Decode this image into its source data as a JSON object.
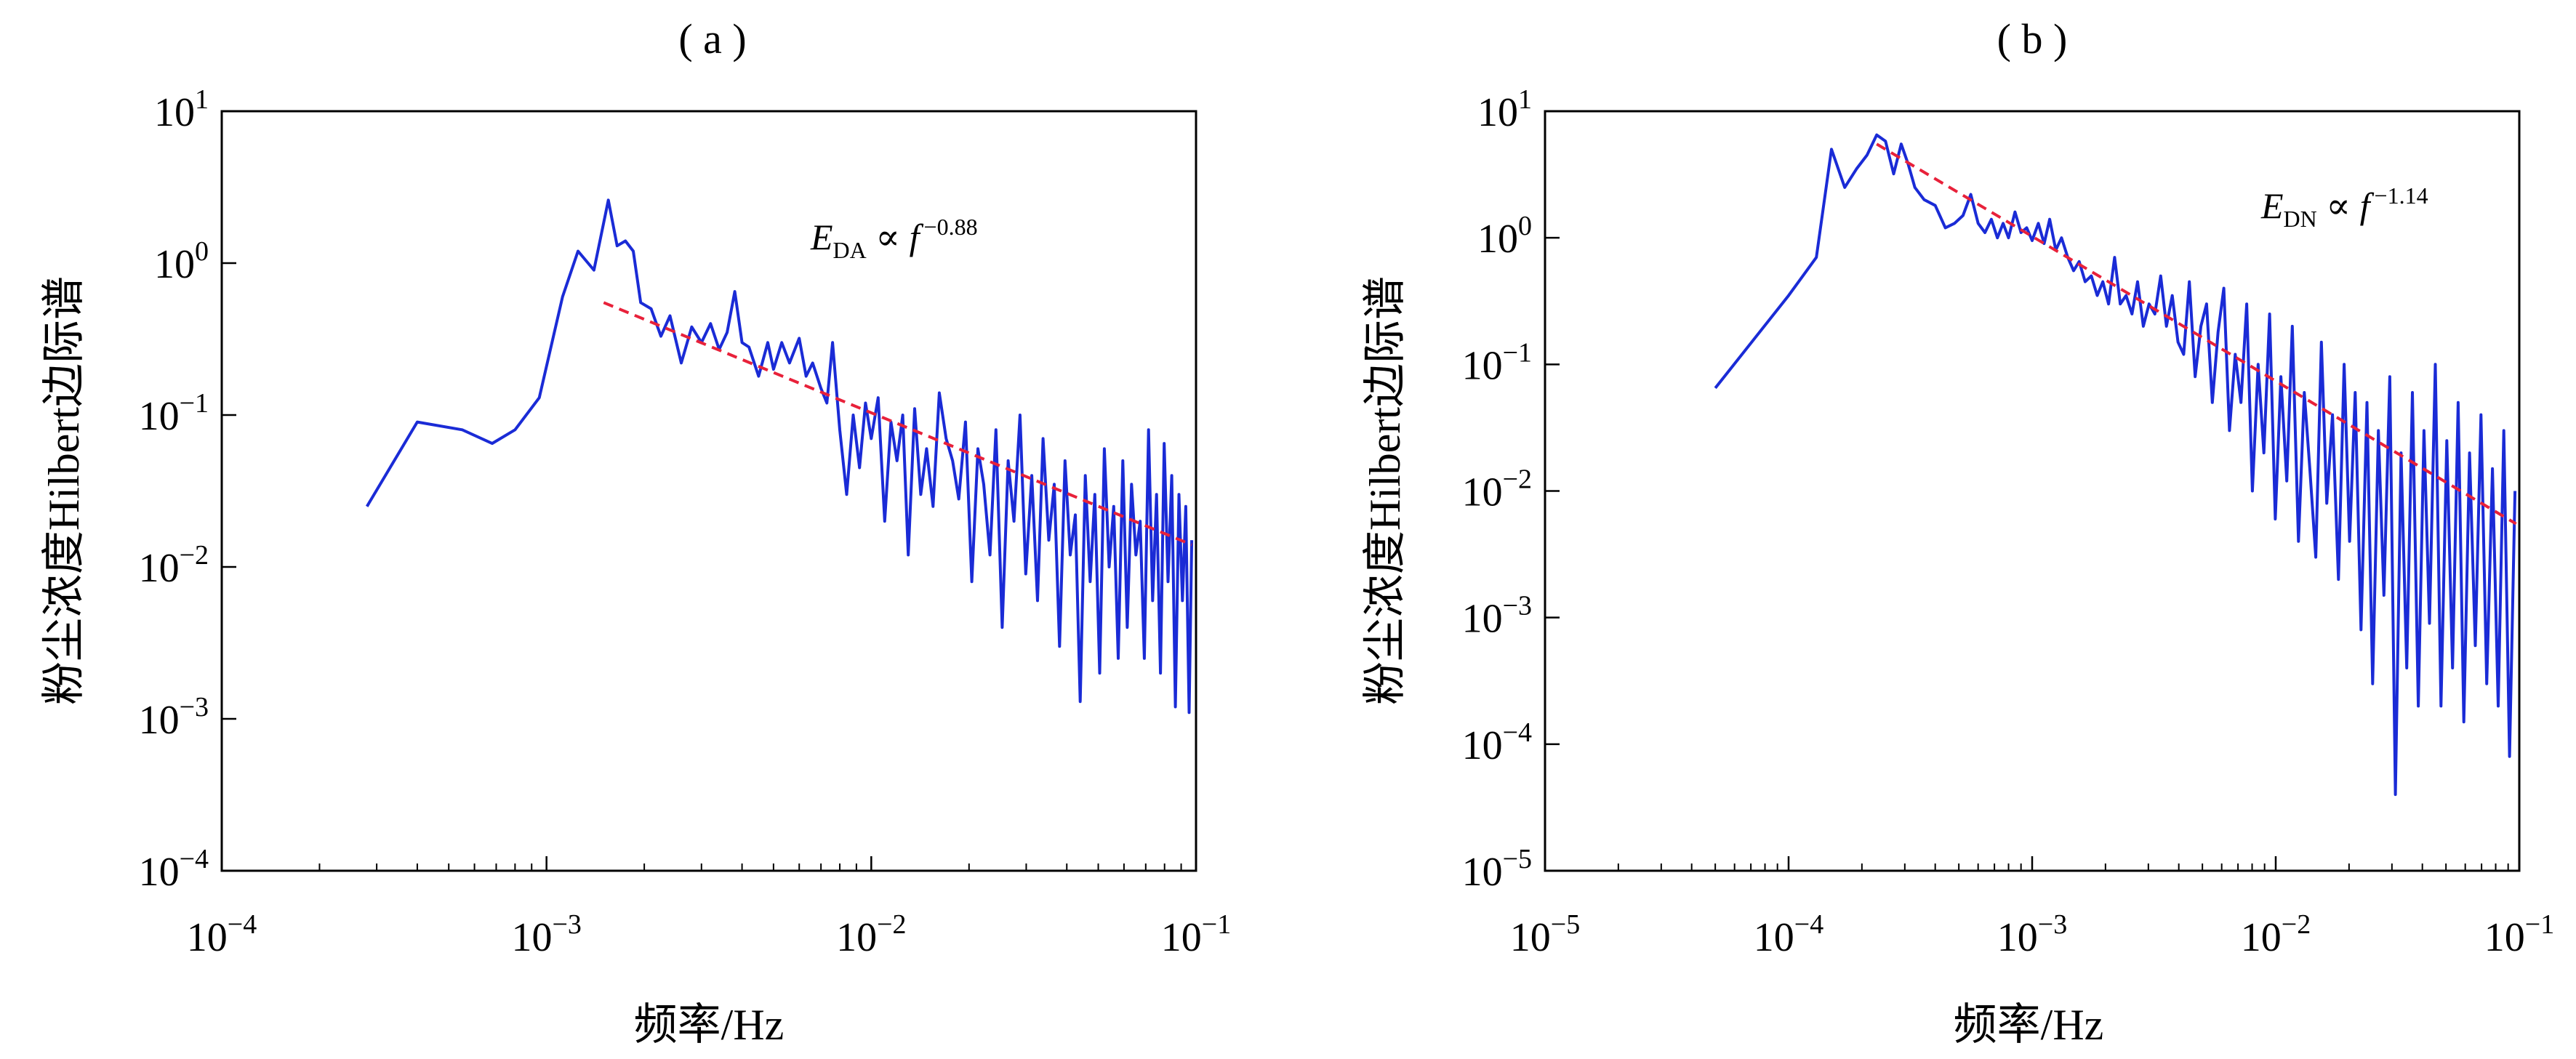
{
  "chart_data": [
    {
      "panel_label": "( a )",
      "type": "line",
      "title": "",
      "xlabel": "频率/Hz",
      "ylabel": "粉尘浓度Hilbert边际谱",
      "x_scale": "log",
      "y_scale": "log",
      "xlim": [
        0.0001,
        0.1
      ],
      "ylim": [
        0.0001,
        10
      ],
      "x_ticks": [
        {
          "base": "10",
          "exp": "−4"
        },
        {
          "base": "10",
          "exp": "−3"
        },
        {
          "base": "10",
          "exp": "−2"
        },
        {
          "base": "10",
          "exp": "−1"
        }
      ],
      "y_ticks": [
        {
          "base": "10",
          "exp": "−4"
        },
        {
          "base": "10",
          "exp": "−3"
        },
        {
          "base": "10",
          "exp": "−2"
        },
        {
          "base": "10",
          "exp": "−1"
        },
        {
          "base": "10",
          "exp": "0"
        },
        {
          "base": "10",
          "exp": "1"
        }
      ],
      "annotation": {
        "var": "E",
        "sub": "DA",
        "rel": " ∝ ",
        "f": "f",
        "exp": "−0.88"
      },
      "grid": false,
      "colors": {
        "spectrum": "#1a2bd6",
        "fit": "#e8213a"
      },
      "series": [
        {
          "style": "solid",
          "x": [
            0.00028,
            0.0004,
            0.00055,
            0.00068,
            0.0008,
            0.00095,
            0.00112,
            0.00125,
            0.0014,
            0.00155,
            0.00165,
            0.00175,
            0.00185,
            0.00195,
            0.0021,
            0.00225,
            0.0024,
            0.0026,
            0.0028,
            0.003,
            0.0032,
            0.0034,
            0.0036,
            0.0038,
            0.004,
            0.0042,
            0.0045,
            0.0048,
            0.005,
            0.0053,
            0.0056,
            0.006,
            0.0063,
            0.0066,
            0.007,
            0.0073,
            0.0076,
            0.008,
            0.0084,
            0.0088,
            0.0092,
            0.0096,
            0.01,
            0.0105,
            0.011,
            0.0115,
            0.012,
            0.0125,
            0.013,
            0.0136,
            0.0142,
            0.0148,
            0.0155,
            0.0162,
            0.017,
            0.0178,
            0.0186,
            0.0195,
            0.0204,
            0.0213,
            0.0222,
            0.0232,
            0.0242,
            0.0253,
            0.0264,
            0.0275,
            0.0287,
            0.0299,
            0.0312,
            0.0325,
            0.0338,
            0.0352,
            0.0366,
            0.038,
            0.0395,
            0.041,
            0.0425,
            0.044,
            0.0456,
            0.0472,
            0.0488,
            0.0505,
            0.0522,
            0.054,
            0.0558,
            0.0576,
            0.0595,
            0.0614,
            0.0633,
            0.0653,
            0.0673,
            0.0693,
            0.0714,
            0.0735,
            0.0756,
            0.0777,
            0.0798,
            0.082,
            0.0842,
            0.0864,
            0.0886,
            0.0908,
            0.093,
            0.0952,
            0.097
          ],
          "y": [
            0.025,
            0.09,
            0.08,
            0.065,
            0.08,
            0.13,
            0.6,
            1.2,
            0.9,
            2.6,
            1.3,
            1.4,
            1.2,
            0.55,
            0.5,
            0.33,
            0.45,
            0.22,
            0.38,
            0.3,
            0.4,
            0.27,
            0.35,
            0.65,
            0.3,
            0.28,
            0.18,
            0.3,
            0.2,
            0.3,
            0.22,
            0.32,
            0.18,
            0.22,
            0.15,
            0.12,
            0.3,
            0.08,
            0.03,
            0.1,
            0.045,
            0.12,
            0.07,
            0.13,
            0.02,
            0.09,
            0.05,
            0.1,
            0.012,
            0.11,
            0.03,
            0.06,
            0.025,
            0.14,
            0.07,
            0.05,
            0.028,
            0.09,
            0.008,
            0.06,
            0.035,
            0.012,
            0.08,
            0.004,
            0.05,
            0.02,
            0.1,
            0.009,
            0.04,
            0.006,
            0.07,
            0.015,
            0.035,
            0.003,
            0.05,
            0.012,
            0.022,
            0.0013,
            0.04,
            0.008,
            0.03,
            0.002,
            0.06,
            0.01,
            0.025,
            0.0025,
            0.05,
            0.004,
            0.035,
            0.012,
            0.02,
            0.0025,
            0.08,
            0.006,
            0.03,
            0.002,
            0.065,
            0.008,
            0.04,
            0.0012,
            0.03,
            0.006,
            0.025,
            0.0011,
            0.015
          ]
        },
        {
          "style": "dashed",
          "x": [
            0.0015,
            0.097
          ],
          "y": [
            0.55,
            0.014
          ]
        }
      ]
    },
    {
      "panel_label": "( b )",
      "type": "line",
      "title": "",
      "xlabel": "频率/Hz",
      "ylabel": "粉尘浓度Hilbert边际谱",
      "x_scale": "log",
      "y_scale": "log",
      "xlim": [
        1e-05,
        0.1
      ],
      "ylim": [
        1e-05,
        10
      ],
      "x_ticks": [
        {
          "base": "10",
          "exp": "−5"
        },
        {
          "base": "10",
          "exp": "−4"
        },
        {
          "base": "10",
          "exp": "−3"
        },
        {
          "base": "10",
          "exp": "−2"
        },
        {
          "base": "10",
          "exp": "−1"
        }
      ],
      "y_ticks": [
        {
          "base": "10",
          "exp": "−5"
        },
        {
          "base": "10",
          "exp": "−4"
        },
        {
          "base": "10",
          "exp": "−3"
        },
        {
          "base": "10",
          "exp": "−2"
        },
        {
          "base": "10",
          "exp": "−1"
        },
        {
          "base": "10",
          "exp": "0"
        },
        {
          "base": "10",
          "exp": "1"
        }
      ],
      "annotation": {
        "var": "E",
        "sub": "DN",
        "rel": " ∝ ",
        "f": "f",
        "exp": "−1.14"
      },
      "grid": false,
      "colors": {
        "spectrum": "#1a2bd6",
        "fit": "#e8213a"
      },
      "series": [
        {
          "style": "solid",
          "x": [
            5e-05,
            0.0001,
            0.00013,
            0.00015,
            0.00017,
            0.00019,
            0.00021,
            0.00023,
            0.00025,
            0.00027,
            0.00029,
            0.00031,
            0.00033,
            0.00036,
            0.0004,
            0.00044,
            0.00048,
            0.00052,
            0.00056,
            0.0006,
            0.00064,
            0.00068,
            0.00072,
            0.00076,
            0.0008,
            0.00085,
            0.0009,
            0.00095,
            0.001,
            0.00106,
            0.00112,
            0.00118,
            0.00125,
            0.00132,
            0.0014,
            0.00148,
            0.00156,
            0.00165,
            0.00175,
            0.00185,
            0.00195,
            0.00206,
            0.00218,
            0.0023,
            0.00243,
            0.00257,
            0.00271,
            0.00286,
            0.00302,
            0.00319,
            0.00337,
            0.00356,
            0.00376,
            0.00397,
            0.00419,
            0.00442,
            0.00467,
            0.00493,
            0.0052,
            0.00549,
            0.0058,
            0.00612,
            0.00646,
            0.00682,
            0.0072,
            0.0076,
            0.00802,
            0.00847,
            0.00894,
            0.00944,
            0.00996,
            0.0105,
            0.0111,
            0.0117,
            0.0124,
            0.0131,
            0.0138,
            0.0146,
            0.0154,
            0.0162,
            0.0171,
            0.0181,
            0.0191,
            0.0201,
            0.0212,
            0.0224,
            0.0237,
            0.025,
            0.0264,
            0.0278,
            0.0294,
            0.031,
            0.0327,
            0.0345,
            0.0364,
            0.0385,
            0.0406,
            0.0428,
            0.0452,
            0.0477,
            0.0504,
            0.0532,
            0.0561,
            0.0592,
            0.0625,
            0.066,
            0.0696,
            0.0735,
            0.0776,
            0.0819,
            0.0864,
            0.0912,
            0.096
          ],
          "y": [
            0.065,
            0.35,
            0.7,
            5.0,
            2.5,
            3.5,
            4.5,
            6.5,
            5.8,
            3.2,
            5.5,
            3.8,
            2.5,
            2.0,
            1.8,
            1.2,
            1.3,
            1.5,
            2.2,
            1.3,
            1.1,
            1.4,
            1.0,
            1.3,
            1.0,
            1.6,
            1.1,
            1.2,
            0.95,
            1.3,
            0.9,
            1.4,
            0.8,
            1.0,
            0.7,
            0.55,
            0.65,
            0.45,
            0.5,
            0.35,
            0.45,
            0.3,
            0.7,
            0.3,
            0.35,
            0.25,
            0.45,
            0.2,
            0.3,
            0.25,
            0.5,
            0.2,
            0.35,
            0.15,
            0.12,
            0.45,
            0.08,
            0.2,
            0.3,
            0.05,
            0.18,
            0.4,
            0.03,
            0.12,
            0.05,
            0.3,
            0.01,
            0.1,
            0.02,
            0.25,
            0.006,
            0.08,
            0.012,
            0.2,
            0.004,
            0.06,
            0.015,
            0.003,
            0.15,
            0.008,
            0.04,
            0.002,
            0.1,
            0.004,
            0.06,
            0.0008,
            0.05,
            0.0003,
            0.03,
            0.0015,
            0.08,
            4e-05,
            0.02,
            0.0004,
            0.06,
            0.0002,
            0.03,
            0.0009,
            0.1,
            0.0002,
            0.025,
            0.0004,
            0.05,
            0.00015,
            0.02,
            0.0006,
            0.04,
            0.0003,
            0.015,
            0.0002,
            0.03,
            8e-05,
            0.01
          ]
        },
        {
          "style": "dashed",
          "x": [
            0.00023,
            0.097
          ],
          "y": [
            5.5,
            0.0055
          ]
        }
      ]
    }
  ]
}
